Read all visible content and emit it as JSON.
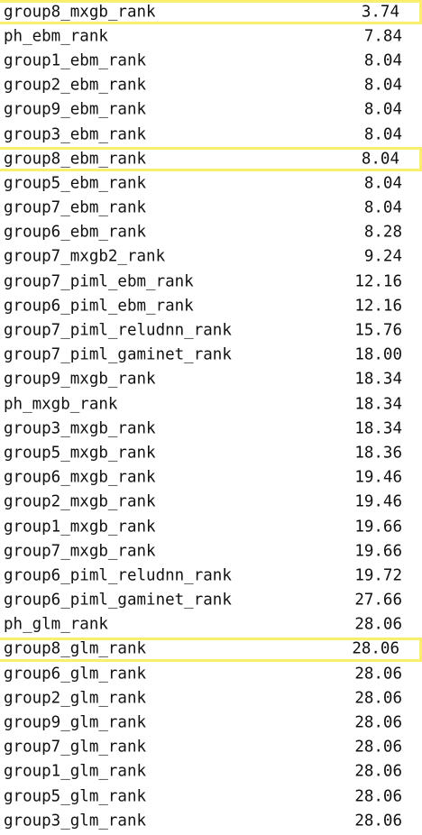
{
  "highlight_color": "#fcee6d",
  "rows": [
    {
      "name": "group8_mxgb_rank",
      "value": "3.74",
      "highlighted": true
    },
    {
      "name": "ph_ebm_rank",
      "value": "7.84",
      "highlighted": false
    },
    {
      "name": "group1_ebm_rank",
      "value": "8.04",
      "highlighted": false
    },
    {
      "name": "group2_ebm_rank",
      "value": "8.04",
      "highlighted": false
    },
    {
      "name": "group9_ebm_rank",
      "value": "8.04",
      "highlighted": false
    },
    {
      "name": "group3_ebm_rank",
      "value": "8.04",
      "highlighted": false
    },
    {
      "name": "group8_ebm_rank",
      "value": "8.04",
      "highlighted": true
    },
    {
      "name": "group5_ebm_rank",
      "value": "8.04",
      "highlighted": false
    },
    {
      "name": "group7_ebm_rank",
      "value": "8.04",
      "highlighted": false
    },
    {
      "name": "group6_ebm_rank",
      "value": "8.28",
      "highlighted": false
    },
    {
      "name": "group7_mxgb2_rank",
      "value": "9.24",
      "highlighted": false
    },
    {
      "name": "group7_piml_ebm_rank",
      "value": "12.16",
      "highlighted": false
    },
    {
      "name": "group6_piml_ebm_rank",
      "value": "12.16",
      "highlighted": false
    },
    {
      "name": "group7_piml_reludnn_rank",
      "value": "15.76",
      "highlighted": false
    },
    {
      "name": "group7_piml_gaminet_rank",
      "value": "18.00",
      "highlighted": false
    },
    {
      "name": "group9_mxgb_rank",
      "value": "18.34",
      "highlighted": false
    },
    {
      "name": "ph_mxgb_rank",
      "value": "18.34",
      "highlighted": false
    },
    {
      "name": "group3_mxgb_rank",
      "value": "18.34",
      "highlighted": false
    },
    {
      "name": "group5_mxgb_rank",
      "value": "18.36",
      "highlighted": false
    },
    {
      "name": "group6_mxgb_rank",
      "value": "19.46",
      "highlighted": false
    },
    {
      "name": "group2_mxgb_rank",
      "value": "19.46",
      "highlighted": false
    },
    {
      "name": "group1_mxgb_rank",
      "value": "19.66",
      "highlighted": false
    },
    {
      "name": "group7_mxgb_rank",
      "value": "19.66",
      "highlighted": false
    },
    {
      "name": "group6_piml_reludnn_rank",
      "value": "19.72",
      "highlighted": false
    },
    {
      "name": "group6_piml_gaminet_rank",
      "value": "27.66",
      "highlighted": false
    },
    {
      "name": "ph_glm_rank",
      "value": "28.06",
      "highlighted": false
    },
    {
      "name": "group8_glm_rank",
      "value": "28.06",
      "highlighted": true
    },
    {
      "name": "group6_glm_rank",
      "value": "28.06",
      "highlighted": false
    },
    {
      "name": "group2_glm_rank",
      "value": "28.06",
      "highlighted": false
    },
    {
      "name": "group9_glm_rank",
      "value": "28.06",
      "highlighted": false
    },
    {
      "name": "group7_glm_rank",
      "value": "28.06",
      "highlighted": false
    },
    {
      "name": "group1_glm_rank",
      "value": "28.06",
      "highlighted": false
    },
    {
      "name": "group5_glm_rank",
      "value": "28.06",
      "highlighted": false
    },
    {
      "name": "group3_glm_rank",
      "value": "28.06",
      "highlighted": false
    }
  ]
}
